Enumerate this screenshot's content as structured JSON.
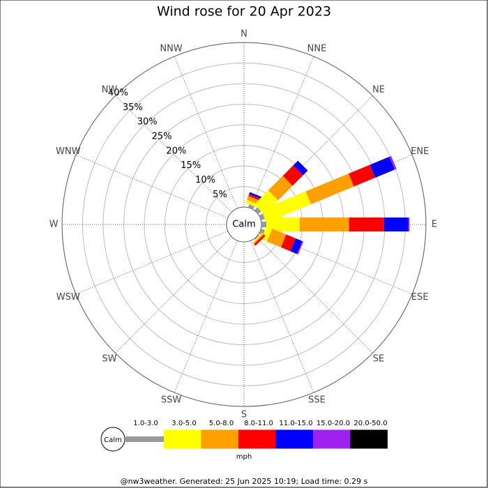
{
  "chart_data": {
    "type": "wind_rose",
    "title": "Wind rose for 20 Apr 2023",
    "calm_label": "Calm",
    "unit": "mph",
    "footer": "@nw3weather. Generated: 25 Jun 2025 10:19; Load time: 0.29 s",
    "categories": [
      "N",
      "NNE",
      "NE",
      "ENE",
      "E",
      "ESE",
      "SE",
      "SSE",
      "S",
      "SSW",
      "SW",
      "WSW",
      "W",
      "WNW",
      "NW",
      "NNW"
    ],
    "rlim": [
      0,
      40
    ],
    "rticks": [
      {
        "value": 5,
        "label": "5%"
      },
      {
        "value": 10,
        "label": "10%"
      },
      {
        "value": 15,
        "label": "15%"
      },
      {
        "value": 20,
        "label": "20%"
      },
      {
        "value": 25,
        "label": "25%"
      },
      {
        "value": 30,
        "label": "30%"
      },
      {
        "value": 35,
        "label": "35%"
      },
      {
        "value": 40,
        "label": "40%"
      }
    ],
    "series": [
      {
        "name": "1.0-3.0",
        "color": "#999999",
        "values": [
          0,
          0.8,
          1,
          1,
          1.2,
          1,
          0.3,
          0,
          0,
          0,
          0,
          0,
          0,
          0,
          0,
          0
        ]
      },
      {
        "name": "3.0-5.0",
        "color": "#ffff00",
        "values": [
          0,
          0.8,
          4.8,
          11.7,
          8.1,
          1.5,
          0.3,
          0,
          0,
          0,
          0,
          0,
          0,
          0,
          0,
          0
        ]
      },
      {
        "name": "5.0-8.0",
        "color": "#ffa000",
        "values": [
          0,
          1,
          5,
          11.3,
          12,
          3.7,
          0.3,
          0,
          0,
          0,
          0,
          0,
          0,
          0,
          0,
          0
        ]
      },
      {
        "name": "8.0-11.0",
        "color": "#ff0000",
        "values": [
          0,
          0.5,
          3.6,
          5.6,
          8.5,
          2.5,
          0.5,
          0,
          0,
          0,
          0,
          0,
          0,
          0,
          0,
          0
        ]
      },
      {
        "name": "11.0-15.0",
        "color": "#0000ff",
        "values": [
          0,
          0.5,
          1.6,
          5.1,
          5.9,
          1.7,
          0,
          0,
          0,
          0,
          0,
          0,
          0,
          0,
          0,
          0
        ]
      },
      {
        "name": "15.0-20.0",
        "color": "#a020f0",
        "values": [
          0,
          0,
          0,
          0.5,
          0.3,
          0.3,
          0,
          0,
          0,
          0,
          0,
          0,
          0,
          0,
          0,
          0
        ]
      },
      {
        "name": "20.0-50.0",
        "color": "#000000",
        "values": [
          0,
          0,
          0,
          0,
          0,
          0,
          0,
          0,
          0,
          0,
          0,
          0,
          0,
          0,
          0,
          0
        ]
      }
    ]
  }
}
